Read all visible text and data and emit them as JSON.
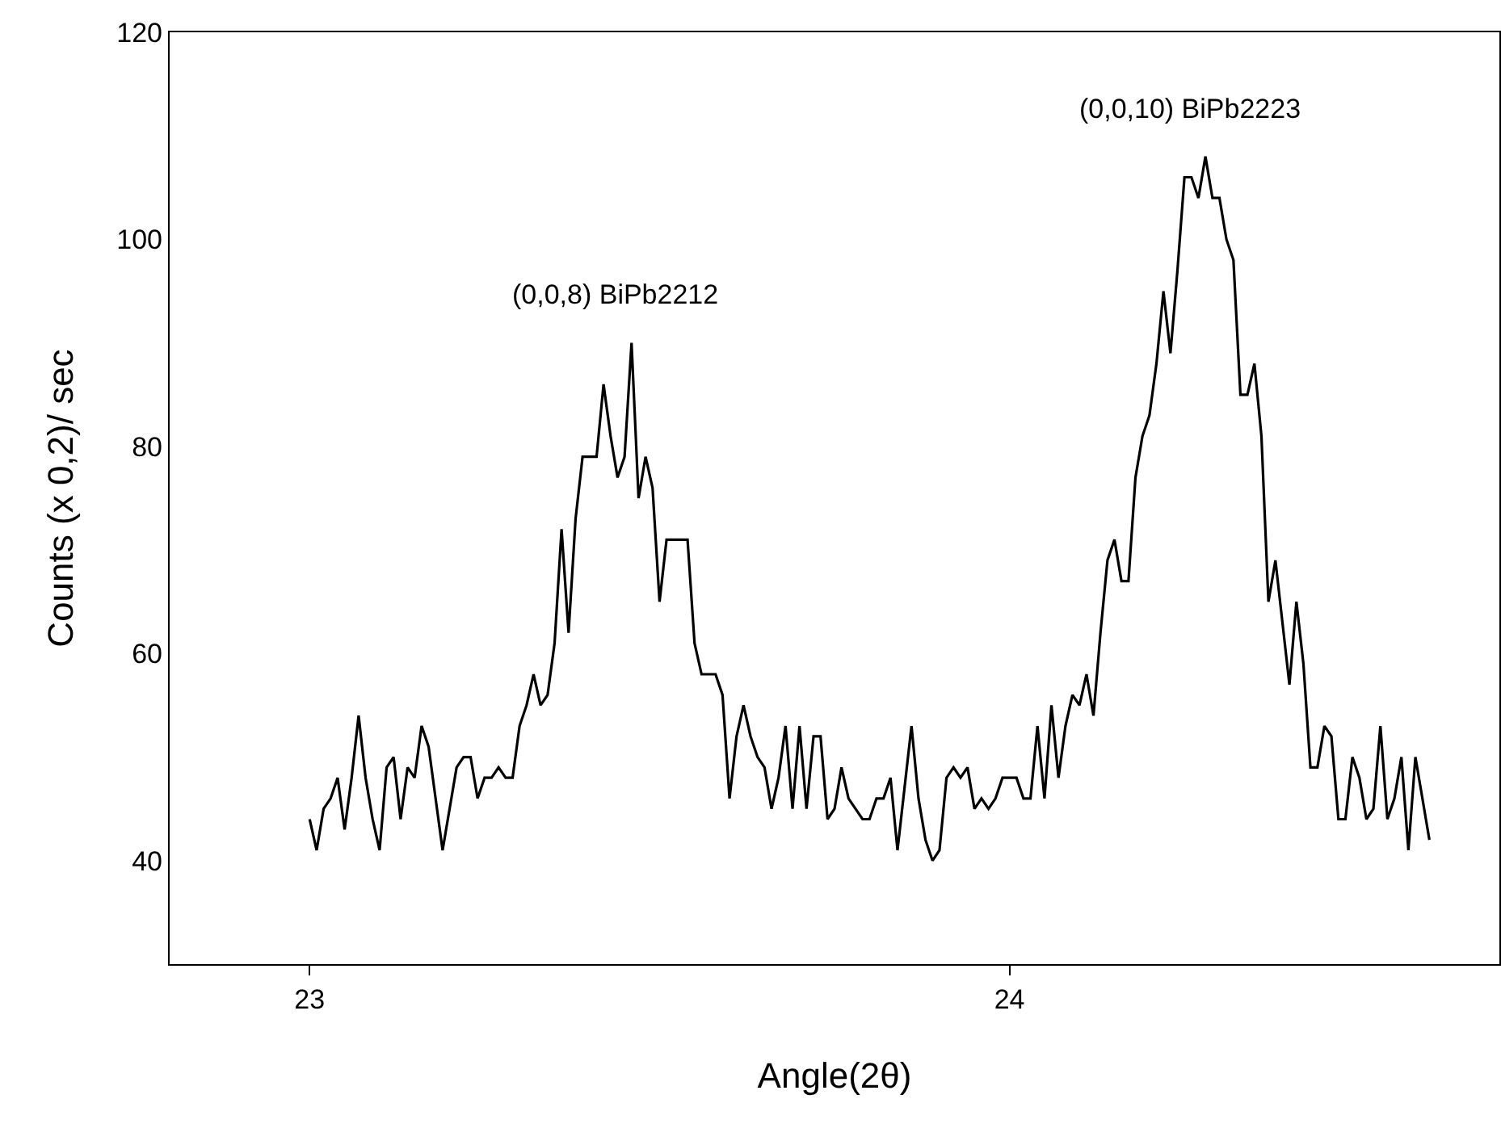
{
  "chart_data": {
    "type": "line",
    "xlabel": "Angle(2θ)",
    "ylabel": "Counts (x 0,2)/ sec",
    "x": [
      23,
      23.01,
      23.02,
      23.03,
      23.04,
      23.05,
      23.06,
      23.07,
      23.08,
      23.09,
      23.1,
      23.11,
      23.12,
      23.13,
      23.14,
      23.15,
      23.16,
      23.17,
      23.18,
      23.19,
      23.2,
      23.21,
      23.22,
      23.23,
      23.24,
      23.25,
      23.26,
      23.27,
      23.28,
      23.29,
      23.3,
      23.31,
      23.32,
      23.33,
      23.34,
      23.35,
      23.36,
      23.37,
      23.38,
      23.39,
      23.4,
      23.41,
      23.42,
      23.43,
      23.44,
      23.45,
      23.46,
      23.47,
      23.48,
      23.49,
      23.5,
      23.51,
      23.52,
      23.53,
      23.54,
      23.55,
      23.56,
      23.57,
      23.58,
      23.59,
      23.6,
      23.61,
      23.62,
      23.63,
      23.64,
      23.65,
      23.66,
      23.67,
      23.68,
      23.69,
      23.7,
      23.71,
      23.72,
      23.73,
      23.74,
      23.75,
      23.76,
      23.77,
      23.78,
      23.79,
      23.8,
      23.81,
      23.82,
      23.83,
      23.84,
      23.85,
      23.86,
      23.87,
      23.88,
      23.89,
      23.9,
      23.91,
      23.92,
      23.93,
      23.94,
      23.95,
      23.96,
      23.97,
      23.98,
      23.99,
      24,
      24.01,
      24.02,
      24.03,
      24.04,
      24.05,
      24.06,
      24.07,
      24.08,
      24.09,
      24.1,
      24.11,
      24.12,
      24.13,
      24.14,
      24.15,
      24.16,
      24.17,
      24.18,
      24.19,
      24.2,
      24.21,
      24.22,
      24.23,
      24.24,
      24.25,
      24.26,
      24.27,
      24.28,
      24.29,
      24.3,
      24.31,
      24.32,
      24.33,
      24.34,
      24.35,
      24.36,
      24.37,
      24.38,
      24.39,
      24.4,
      24.41,
      24.42,
      24.43,
      24.44,
      24.45,
      24.46,
      24.47,
      24.48,
      24.49,
      24.5,
      24.51,
      24.52,
      24.53,
      24.54,
      24.55,
      24.56,
      24.57,
      24.58,
      24.59,
      24.6
    ],
    "series": [
      {
        "color": "#000000",
        "values": [
          44,
          41,
          45,
          46,
          48,
          43,
          48,
          54,
          48,
          44,
          41,
          49,
          50,
          44,
          49,
          48,
          53,
          51,
          46,
          41,
          45,
          49,
          50,
          50,
          46,
          48,
          48,
          49,
          48,
          48,
          53,
          55,
          58,
          55,
          56,
          61,
          72,
          62,
          73,
          79,
          79,
          79,
          86,
          81,
          77,
          79,
          90,
          75,
          79,
          76,
          65,
          71,
          71,
          71,
          71,
          61,
          58,
          58,
          58,
          56,
          46,
          52,
          55,
          52,
          50,
          49,
          45,
          48,
          53,
          45,
          53,
          45,
          52,
          52,
          44,
          45,
          49,
          46,
          45,
          44,
          44,
          46,
          46,
          48,
          41,
          47,
          53,
          46,
          42,
          40,
          41,
          48,
          49,
          48,
          49,
          45,
          46,
          45,
          46,
          48,
          48,
          48,
          46,
          46,
          53,
          46,
          55,
          48,
          53,
          56,
          55,
          58,
          54,
          62,
          69,
          71,
          67,
          67,
          77,
          81,
          83,
          88,
          95,
          89,
          97,
          106,
          106,
          104,
          108,
          104,
          104,
          100,
          98,
          85,
          85,
          88,
          81,
          65,
          69,
          63,
          57,
          65,
          59,
          49,
          49,
          53,
          52,
          44,
          44,
          50,
          48,
          44,
          45,
          53,
          44,
          46,
          50,
          41,
          50,
          46,
          42
        ]
      }
    ],
    "xlim": [
      22.8,
      24.7
    ],
    "xticks": [
      23,
      24
    ],
    "ylim": [
      30,
      120
    ],
    "yticks": [
      40,
      60,
      80,
      100,
      120
    ],
    "grid": false,
    "marker": "none",
    "line_style": "solid",
    "annotations": [
      {
        "text": "(0,0,8) BiPb2212",
        "x": 23.46,
        "y": 90
      },
      {
        "text": "(0,0,10) BiPb2223",
        "x": 24.28,
        "y": 108
      }
    ]
  }
}
